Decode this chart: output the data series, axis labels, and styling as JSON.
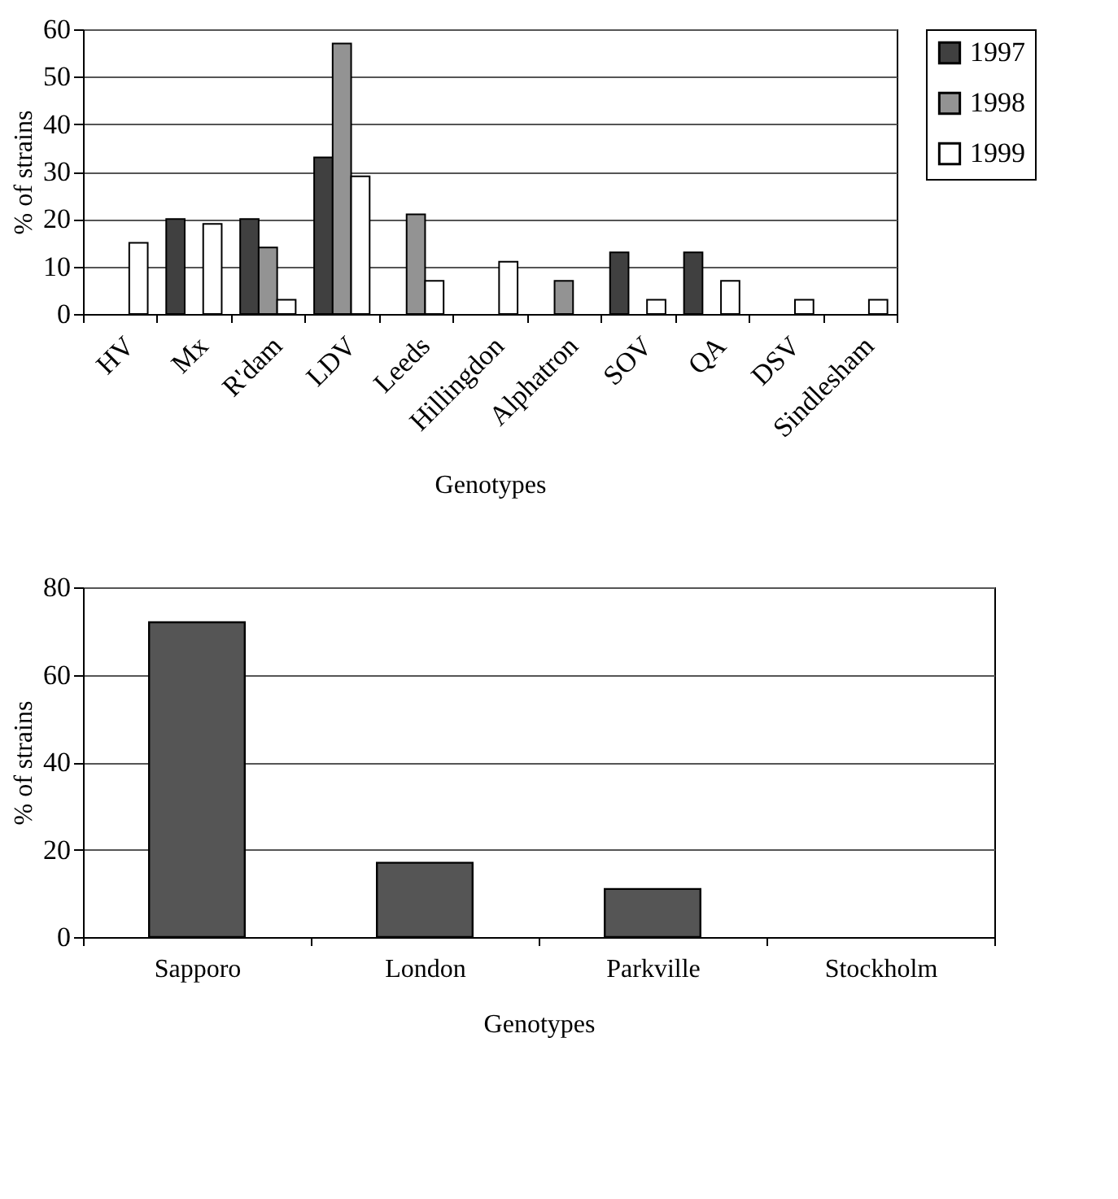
{
  "chart_data": [
    {
      "type": "bar",
      "xlabel": "Genotypes",
      "ylabel": "% of strains",
      "categories": [
        "HV",
        "Mx",
        "R'dam",
        "LDV",
        "Leeds",
        "Hillingdon",
        "Alphatron",
        "SOV",
        "QA",
        "DSV",
        "Sindlesham"
      ],
      "series": [
        {
          "name": "1997",
          "color": "#404040",
          "values": [
            null,
            20,
            20,
            33,
            null,
            null,
            null,
            13,
            13,
            null,
            null
          ]
        },
        {
          "name": "1998",
          "color": "#939393",
          "values": [
            null,
            null,
            14,
            57,
            21,
            null,
            7,
            null,
            null,
            null,
            null
          ]
        },
        {
          "name": "1999",
          "color": "#ffffff",
          "values": [
            15,
            19,
            3,
            29,
            7,
            11,
            null,
            3,
            7,
            3,
            3
          ]
        }
      ],
      "ylim": [
        0,
        60
      ],
      "yticks": [
        0,
        10,
        20,
        30,
        40,
        50,
        60
      ],
      "grid": "y",
      "legend": "right"
    },
    {
      "type": "bar",
      "xlabel": "Genotypes",
      "ylabel": "% of strains",
      "categories": [
        "Sapporo",
        "London",
        "Parkville",
        "Stockholm"
      ],
      "series": [
        {
          "color": "#555555",
          "values": [
            72,
            17,
            11,
            null
          ]
        }
      ],
      "ylim": [
        0,
        80
      ],
      "yticks": [
        0,
        20,
        40,
        60,
        80
      ],
      "grid": "y"
    }
  ]
}
